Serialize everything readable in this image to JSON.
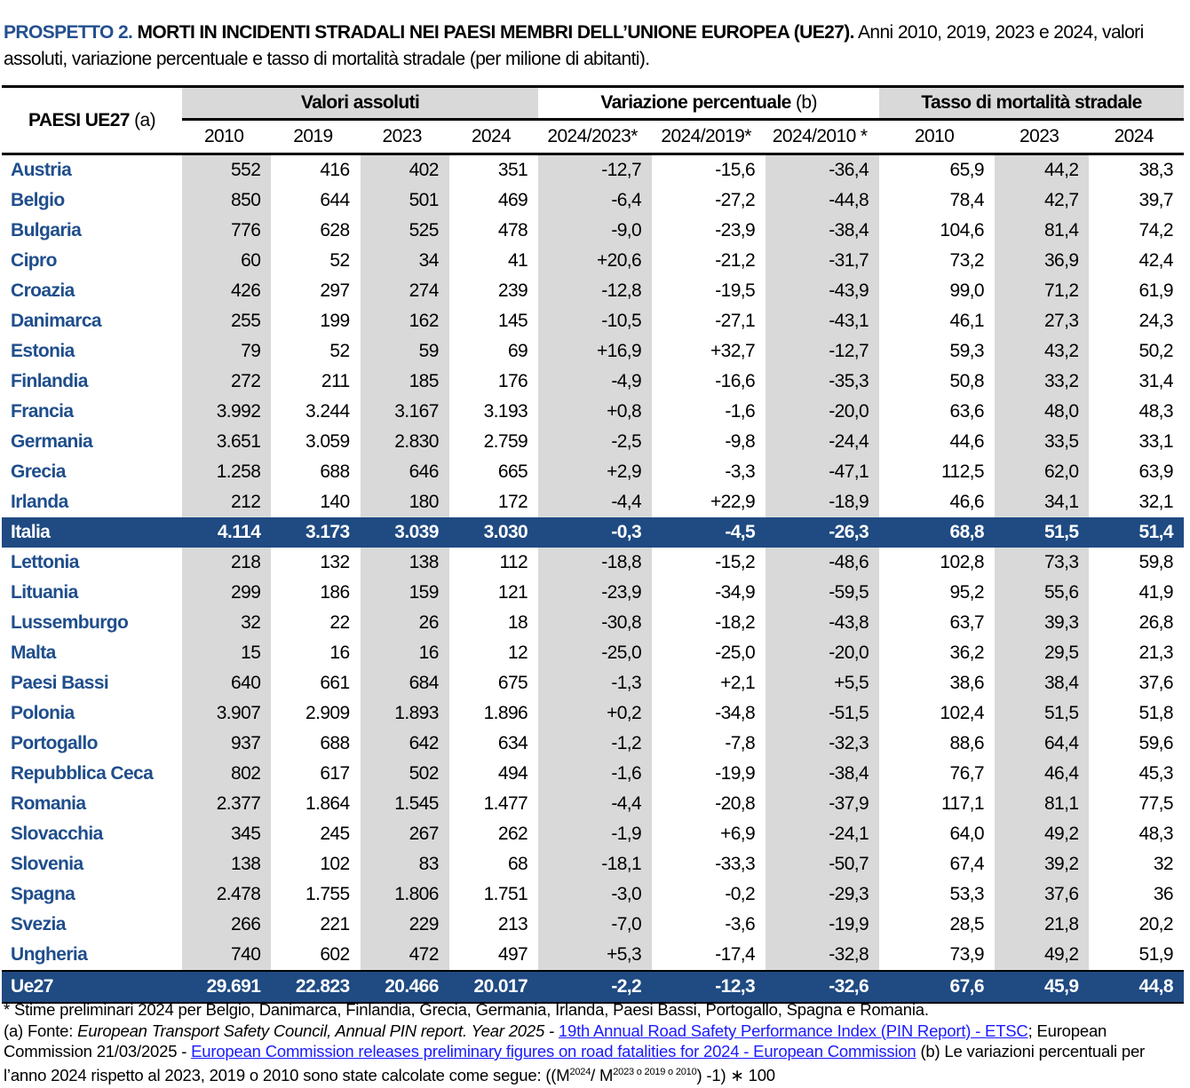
{
  "title": {
    "lead": "PROSPETTO 2.",
    "bold": " MORTI IN INCIDENTI STRADALI NEI PAESI MEMBRI DELL’UNIONE EUROPEA (UE27).",
    "rest": " Anni 2010, 2019, 2023 e 2024, valori assoluti, variazione percentuale e tasso di mortalità stradale (per milione di abitanti)."
  },
  "table": {
    "country_header": "PAESI UE27",
    "country_header_note": " (a)",
    "groups": [
      "Valori assoluti",
      "Variazione percentuale",
      "Tasso di mortalità stradale"
    ],
    "group2_note": " (b)",
    "columns": [
      "2010",
      "2019",
      "2023",
      "2024",
      "2024/2023*",
      "2024/2019*",
      "2024/2010 *",
      "2010",
      "2023",
      "2024"
    ],
    "rows": [
      [
        "Austria",
        "552",
        "416",
        "402",
        "351",
        "-12,7",
        "-15,6",
        "-36,4",
        "65,9",
        "44,2",
        "38,3"
      ],
      [
        "Belgio",
        "850",
        "644",
        "501",
        "469",
        "-6,4",
        "-27,2",
        "-44,8",
        "78,4",
        "42,7",
        "39,7"
      ],
      [
        "Bulgaria",
        "776",
        "628",
        "525",
        "478",
        "-9,0",
        "-23,9",
        "-38,4",
        "104,6",
        "81,4",
        "74,2"
      ],
      [
        "Cipro",
        "60",
        "52",
        "34",
        "41",
        "+20,6",
        "-21,2",
        "-31,7",
        "73,2",
        "36,9",
        "42,4"
      ],
      [
        "Croazia",
        "426",
        "297",
        "274",
        "239",
        "-12,8",
        "-19,5",
        "-43,9",
        "99,0",
        "71,2",
        "61,9"
      ],
      [
        "Danimarca",
        "255",
        "199",
        "162",
        "145",
        "-10,5",
        "-27,1",
        "-43,1",
        "46,1",
        "27,3",
        "24,3"
      ],
      [
        "Estonia",
        "79",
        "52",
        "59",
        "69",
        "+16,9",
        "+32,7",
        "-12,7",
        "59,3",
        "43,2",
        "50,2"
      ],
      [
        "Finlandia",
        "272",
        "211",
        "185",
        "176",
        "-4,9",
        "-16,6",
        "-35,3",
        "50,8",
        "33,2",
        "31,4"
      ],
      [
        "Francia",
        "3.992",
        "3.244",
        "3.167",
        "3.193",
        "+0,8",
        "-1,6",
        "-20,0",
        "63,6",
        "48,0",
        "48,3"
      ],
      [
        "Germania",
        "3.651",
        "3.059",
        "2.830",
        "2.759",
        "-2,5",
        "-9,8",
        "-24,4",
        "44,6",
        "33,5",
        "33,1"
      ],
      [
        "Grecia",
        "1.258",
        "688",
        "646",
        "665",
        "+2,9",
        "-3,3",
        "-47,1",
        "112,5",
        "62,0",
        "63,9"
      ],
      [
        "Irlanda",
        "212",
        "140",
        "180",
        "172",
        "-4,4",
        "+22,9",
        "-18,9",
        "46,6",
        "34,1",
        "32,1"
      ],
      [
        "Italia",
        "4.114",
        "3.173",
        "3.039",
        "3.030",
        "-0,3",
        "-4,5",
        "-26,3",
        "68,8",
        "51,5",
        "51,4"
      ],
      [
        "Lettonia",
        "218",
        "132",
        "138",
        "112",
        "-18,8",
        "-15,2",
        "-48,6",
        "102,8",
        "73,3",
        "59,8"
      ],
      [
        "Lituania",
        "299",
        "186",
        "159",
        "121",
        "-23,9",
        "-34,9",
        "-59,5",
        "95,2",
        "55,6",
        "41,9"
      ],
      [
        "Lussemburgo",
        "32",
        "22",
        "26",
        "18",
        "-30,8",
        "-18,2",
        "-43,8",
        "63,7",
        "39,3",
        "26,8"
      ],
      [
        "Malta",
        "15",
        "16",
        "16",
        "12",
        "-25,0",
        "-25,0",
        "-20,0",
        "36,2",
        "29,5",
        "21,3"
      ],
      [
        "Paesi Bassi",
        "640",
        "661",
        "684",
        "675",
        "-1,3",
        "+2,1",
        "+5,5",
        "38,6",
        "38,4",
        "37,6"
      ],
      [
        "Polonia",
        "3.907",
        "2.909",
        "1.893",
        "1.896",
        "+0,2",
        "-34,8",
        "-51,5",
        "102,4",
        "51,5",
        "51,8"
      ],
      [
        "Portogallo",
        "937",
        "688",
        "642",
        "634",
        "-1,2",
        "-7,8",
        "-32,3",
        "88,6",
        "64,4",
        "59,6"
      ],
      [
        "Repubblica Ceca",
        "802",
        "617",
        "502",
        "494",
        "-1,6",
        "-19,9",
        "-38,4",
        "76,7",
        "46,4",
        "45,3"
      ],
      [
        "Romania",
        "2.377",
        "1.864",
        "1.545",
        "1.477",
        "-4,4",
        "-20,8",
        "-37,9",
        "117,1",
        "81,1",
        "77,5"
      ],
      [
        "Slovacchia",
        "345",
        "245",
        "267",
        "262",
        "-1,9",
        "+6,9",
        "-24,1",
        "64,0",
        "49,2",
        "48,3"
      ],
      [
        "Slovenia",
        "138",
        "102",
        "83",
        "68",
        "-18,1",
        "-33,3",
        "-50,7",
        "67,4",
        "39,2",
        "32"
      ],
      [
        "Spagna",
        "2.478",
        "1.755",
        "1.806",
        "1.751",
        "-3,0",
        "-0,2",
        "-29,3",
        "53,3",
        "37,6",
        "36"
      ],
      [
        "Svezia",
        "266",
        "221",
        "229",
        "213",
        "-7,0",
        "-3,6",
        "-19,9",
        "28,5",
        "21,8",
        "20,2"
      ],
      [
        "Ungheria",
        "740",
        "602",
        "472",
        "497",
        "+5,3",
        "-17,4",
        "-32,8",
        "73,9",
        "49,2",
        "51,9"
      ]
    ],
    "highlight_row": "Italia",
    "total": [
      "Ue27",
      "29.691",
      "22.823",
      "20.466",
      "20.017",
      "-2,2",
      "-12,3",
      "-32,6",
      "67,6",
      "45,9",
      "44,8"
    ]
  },
  "notes": {
    "star": "* Stime preliminari 2024 per Belgio, Danimarca, Finlandia, Grecia, Germania, Irlanda, Paesi Bassi, Portogallo, Spagna e Romania.",
    "a_prefix": "(a) Fonte: ",
    "a_italic": "European Transport Safety Council, Annual PIN report. Year 2025 - ",
    "link1": "19th Annual Road Safety Performance Index (PIN Report) - ETSC",
    "a_mid": "; European Commission 21/03/2025 - ",
    "link2": "European Commission releases preliminary figures on road fatalities for 2024 - European Commission",
    "b_text": " (b) Le variazioni percentuali per l’anno 2024 rispetto al 2023, 2019 o 2010 sono state calcolate come segue: ((M",
    "sup1": "2024",
    "mid": "/ M",
    "sup2": "2023 o 2019 o 2010",
    "end": ") -1) ∗ 100"
  },
  "colors": {
    "accent": "#1f4e8c",
    "highlight_bg": "#1f4a82",
    "shade": "#d9d9d9",
    "link": "#1a1aff"
  }
}
